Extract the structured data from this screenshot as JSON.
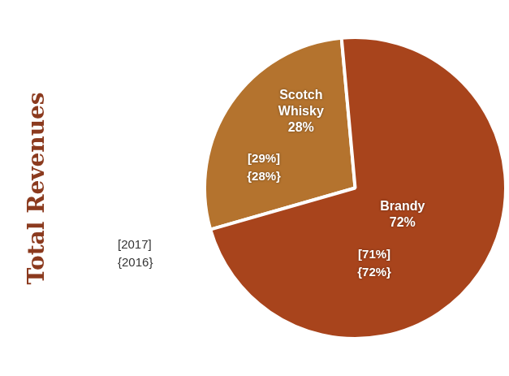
{
  "chart_data": {
    "type": "pie",
    "title": "Total Revenues",
    "categories": [
      "Scotch Whisky",
      "Brandy"
    ],
    "values": [
      28,
      72
    ],
    "value_labels": [
      "28%",
      "72%"
    ],
    "colors": [
      "#b4732e",
      "#a8441c"
    ],
    "data_labels": true,
    "comparisons": [
      {
        "name": "[2017]",
        "values": [
          29,
          71
        ],
        "value_labels": [
          "[29%]",
          "[71%]"
        ]
      },
      {
        "name": "{2016}",
        "values": [
          28,
          72
        ],
        "value_labels": [
          "{28%}",
          "{72%}"
        ]
      }
    ]
  }
}
